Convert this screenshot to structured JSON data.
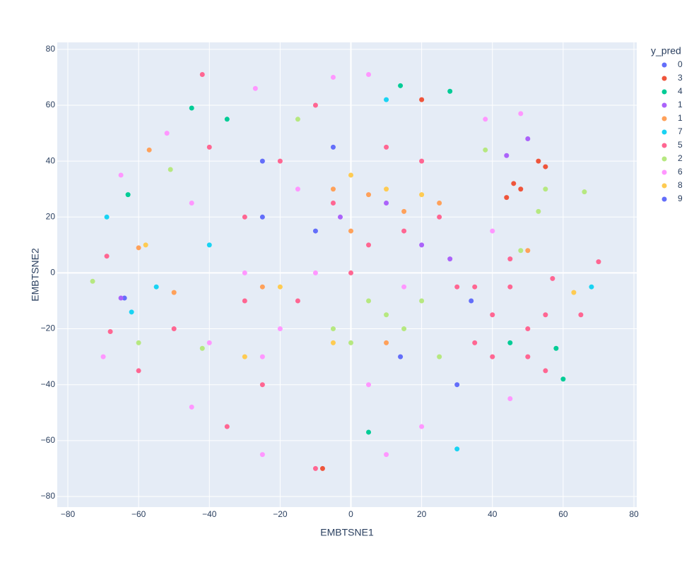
{
  "chart_data": {
    "type": "scatter",
    "x_label": "EMBTSNE1",
    "y_label": "EMBTSNE2",
    "legend_title": "y_pred",
    "xlim": [
      -83,
      80.8
    ],
    "ylim": [
      -83.8,
      82.5
    ],
    "xticks": [
      {
        "value": -80,
        "label": "−80"
      },
      {
        "value": -60,
        "label": "−60"
      },
      {
        "value": -40,
        "label": "−40"
      },
      {
        "value": -20,
        "label": "−20"
      },
      0,
      20,
      40,
      60,
      80
    ],
    "yticks": [
      {
        "value": -80,
        "label": "−80"
      },
      {
        "value": -60,
        "label": "−60"
      },
      {
        "value": -40,
        "label": "−40"
      },
      {
        "value": -20,
        "label": "−20"
      },
      0,
      20,
      40,
      60,
      80
    ],
    "grid": true,
    "series": [
      {
        "name": "0",
        "color": "#636efa",
        "x": [
          -64,
          14,
          -5,
          34,
          -25
        ],
        "y": [
          -9,
          -30,
          45,
          -10,
          20
        ]
      },
      {
        "name": "3",
        "color": "#EF553B",
        "x": [
          53,
          46,
          44,
          48,
          55,
          -8,
          20
        ],
        "y": [
          40,
          32,
          27,
          30,
          38,
          -70,
          62
        ]
      },
      {
        "name": "4",
        "color": "#00cc96",
        "x": [
          14,
          28,
          -45,
          -35,
          58,
          -63,
          5,
          45,
          60
        ],
        "y": [
          67,
          65,
          59,
          55,
          -27,
          28,
          -57,
          -25,
          -38
        ]
      },
      {
        "name": "1",
        "color": "#ab63fa",
        "x": [
          50,
          44,
          10,
          20,
          -65,
          28,
          -3
        ],
        "y": [
          48,
          42,
          25,
          10,
          -9,
          5,
          20
        ]
      },
      {
        "name": "1",
        "color": "#FFA15A",
        "x": [
          -57,
          5,
          15,
          -5,
          0,
          25,
          50,
          -50,
          -25,
          10,
          -60
        ],
        "y": [
          44,
          28,
          22,
          30,
          15,
          25,
          8,
          -7,
          -5,
          -25,
          9
        ]
      },
      {
        "name": "7",
        "color": "#19d3f3",
        "x": [
          -69,
          10,
          68,
          -62,
          -40,
          30,
          -55
        ],
        "y": [
          20,
          62,
          -5,
          -14,
          10,
          -63,
          -5
        ]
      },
      {
        "name": "5",
        "color": "#FF6692",
        "x": [
          -68,
          -69,
          -42,
          -10,
          70,
          40,
          50,
          45,
          55,
          35,
          40,
          50,
          35,
          45,
          25,
          15,
          5,
          -5,
          0,
          -20,
          -30,
          -40,
          -50,
          -25,
          -10,
          20,
          10,
          -35,
          65,
          55,
          -15,
          -30,
          30,
          -60,
          57
        ],
        "y": [
          -21,
          6,
          71,
          60,
          4,
          -15,
          -20,
          -5,
          -15,
          -25,
          -30,
          -30,
          -5,
          5,
          20,
          15,
          10,
          25,
          0,
          40,
          20,
          45,
          -20,
          -40,
          -70,
          40,
          45,
          -55,
          -15,
          -35,
          -10,
          -10,
          -5,
          -35,
          -2
        ]
      },
      {
        "name": "2",
        "color": "#B6E880",
        "x": [
          -73,
          -51,
          55,
          66,
          53,
          10,
          15,
          5,
          -5,
          20,
          0,
          38,
          -42,
          25,
          -60,
          48,
          -15
        ],
        "y": [
          -3,
          37,
          30,
          29,
          22,
          -15,
          -20,
          -10,
          -20,
          -10,
          -25,
          44,
          -27,
          -30,
          -25,
          8,
          55
        ]
      },
      {
        "name": "6",
        "color": "#FF97FF",
        "x": [
          -27,
          -5,
          5,
          48,
          38,
          -52,
          -25,
          -70,
          -45,
          -25,
          5,
          45,
          -40,
          -10,
          15,
          -20,
          40,
          -65,
          20,
          10,
          -30,
          -15,
          -45
        ],
        "y": [
          66,
          70,
          71,
          57,
          55,
          50,
          -30,
          -30,
          -48,
          -65,
          -40,
          -45,
          -25,
          0,
          -5,
          -20,
          15,
          35,
          -55,
          -65,
          0,
          30,
          25
        ]
      },
      {
        "name": "8",
        "color": "#FECB52",
        "x": [
          -58,
          -5,
          10,
          -20,
          63,
          0,
          -30,
          20
        ],
        "y": [
          10,
          -25,
          30,
          -5,
          -7,
          35,
          -30,
          28
        ]
      },
      {
        "name": "9",
        "color": "#636efa",
        "x": [
          -25,
          30,
          -10
        ],
        "y": [
          40,
          -40,
          15
        ]
      }
    ]
  }
}
